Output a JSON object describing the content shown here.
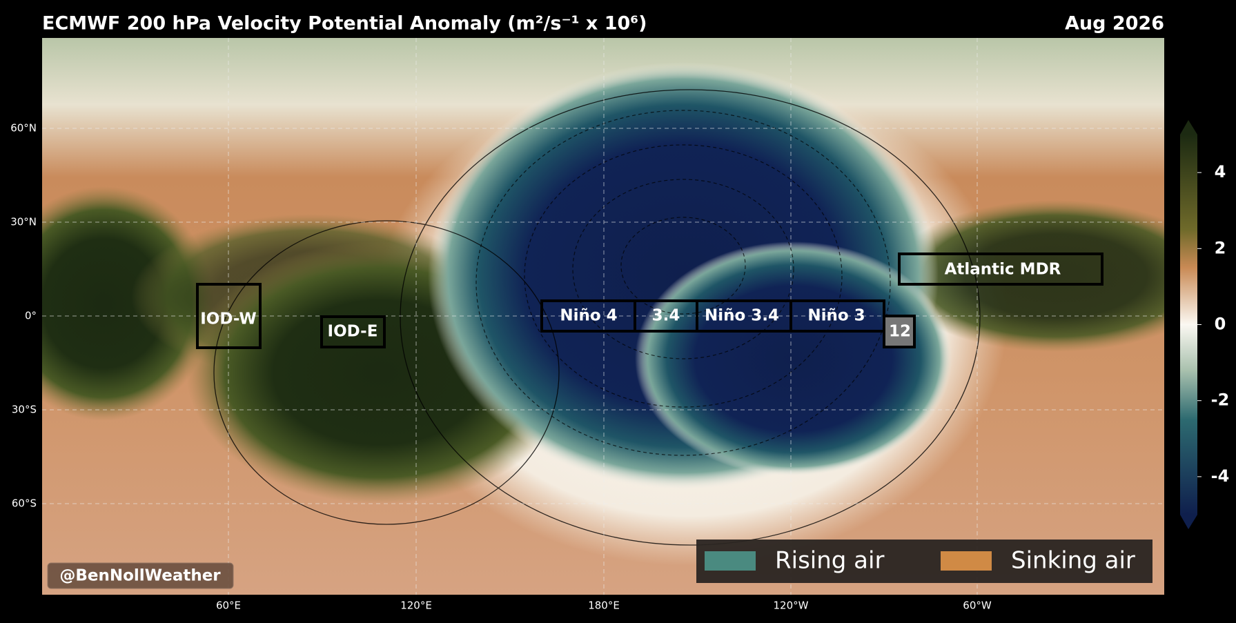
{
  "header": {
    "title": "ECMWF 200 hPa Velocity Potential Anomaly (m²/s⁻¹ x 10⁶)",
    "date": "Aug 2026"
  },
  "map": {
    "lat_labels": [
      "60°N",
      "30°N",
      "0°",
      "30°S",
      "60°S"
    ],
    "lon_labels": [
      "60°E",
      "120°E",
      "180°E",
      "120°W",
      "60°W"
    ],
    "regions": [
      "IOD-W",
      "IOD-E",
      "Niño 4",
      "3.4",
      "Niño 3.4",
      "Niño 3",
      "12",
      "Atlantic MDR"
    ]
  },
  "colorbar": {
    "clim": [
      -5,
      5
    ],
    "ticks": [
      4,
      2,
      0,
      -2,
      -4
    ]
  },
  "legend": [
    {
      "name": "Rising air",
      "color": "#4a8a80"
    },
    {
      "name": "Sinking air",
      "color": "#d08a45"
    }
  ],
  "watermark": "@BenNollWeather"
}
